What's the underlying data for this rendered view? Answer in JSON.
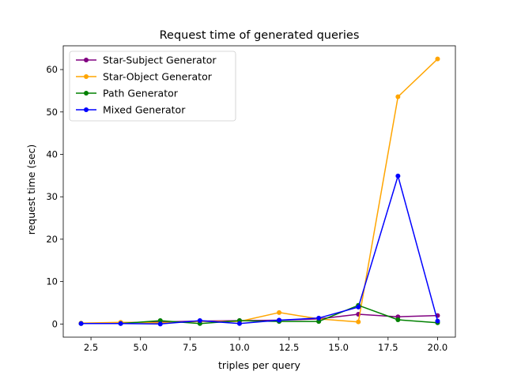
{
  "chart_data": {
    "type": "line",
    "title": "Request time of generated queries",
    "xlabel": "triples per query",
    "ylabel": "request time (sec)",
    "xlim": [
      1.1,
      20.9
    ],
    "ylim": [
      -3.1,
      65.6
    ],
    "xticks": [
      2.5,
      5.0,
      7.5,
      10.0,
      12.5,
      15.0,
      17.5,
      20.0
    ],
    "xtick_labels": [
      "2.5",
      "5.0",
      "7.5",
      "10.0",
      "12.5",
      "15.0",
      "17.5",
      "20.0"
    ],
    "yticks": [
      0,
      10,
      20,
      30,
      40,
      50,
      60
    ],
    "ytick_labels": [
      "0",
      "10",
      "20",
      "30",
      "40",
      "50",
      "60"
    ],
    "grid": false,
    "legend_position": "top-left",
    "x": [
      2,
      4,
      6,
      8,
      10,
      12,
      14,
      16,
      18,
      20
    ],
    "series": [
      {
        "name": "Star-Subject Generator",
        "color": "#800080",
        "values": [
          0.1,
          0.3,
          0.5,
          0.7,
          0.8,
          0.9,
          1.2,
          2.3,
          1.7,
          2.0
        ]
      },
      {
        "name": "Star-Object Generator",
        "color": "#ffa500",
        "values": [
          0.2,
          0.4,
          0.3,
          0.6,
          0.6,
          2.7,
          1.2,
          0.5,
          53.6,
          62.5
        ]
      },
      {
        "name": "Path Generator",
        "color": "#008000",
        "values": [
          0.1,
          0.1,
          0.8,
          0.1,
          0.8,
          0.6,
          0.6,
          4.4,
          1.0,
          0.3
        ]
      },
      {
        "name": "Mixed Generator",
        "color": "#0000ff",
        "values": [
          0.1,
          0.1,
          0.0,
          0.8,
          0.1,
          0.9,
          1.4,
          4.0,
          34.9,
          0.7
        ]
      }
    ]
  }
}
